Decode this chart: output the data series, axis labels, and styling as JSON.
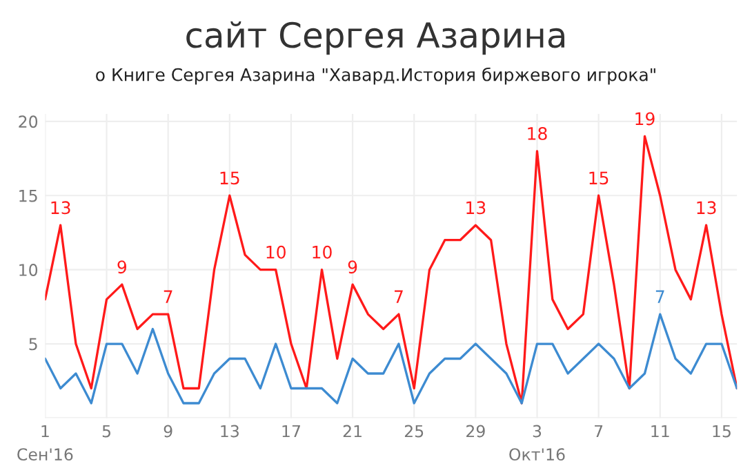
{
  "chart_data": {
    "type": "line",
    "title": "сайт Сергея Азарина",
    "subtitle": "о Книге Сергея Азарина \"Хавард.История биржевого игрока\"",
    "x": [
      "2016-09-01",
      "2016-09-02",
      "2016-09-03",
      "2016-09-04",
      "2016-09-05",
      "2016-09-06",
      "2016-09-07",
      "2016-09-08",
      "2016-09-09",
      "2016-09-10",
      "2016-09-11",
      "2016-09-12",
      "2016-09-13",
      "2016-09-14",
      "2016-09-15",
      "2016-09-16",
      "2016-09-17",
      "2016-09-18",
      "2016-09-19",
      "2016-09-20",
      "2016-09-21",
      "2016-09-22",
      "2016-09-23",
      "2016-09-24",
      "2016-09-25",
      "2016-09-26",
      "2016-09-27",
      "2016-09-28",
      "2016-09-29",
      "2016-09-30",
      "2016-10-01",
      "2016-10-02",
      "2016-10-03",
      "2016-10-04",
      "2016-10-05",
      "2016-10-06",
      "2016-10-07",
      "2016-10-08",
      "2016-10-09",
      "2016-10-10",
      "2016-10-11",
      "2016-10-12",
      "2016-10-13",
      "2016-10-14",
      "2016-10-15",
      "2016-10-16"
    ],
    "series": [
      {
        "color": "#ff1a1a",
        "values": [
          8,
          13,
          5,
          2,
          8,
          9,
          6,
          7,
          7,
          2,
          2,
          10,
          15,
          11,
          10,
          10,
          5,
          2,
          10,
          4,
          9,
          7,
          6,
          7,
          2,
          10,
          12,
          12,
          13,
          12,
          5,
          1,
          18,
          8,
          6,
          7,
          15,
          9,
          2,
          19,
          15,
          10,
          8,
          13,
          7,
          2
        ],
        "value_labels": [
          null,
          "13",
          null,
          null,
          null,
          "9",
          null,
          null,
          "7",
          null,
          null,
          null,
          "15",
          null,
          null,
          "10",
          null,
          null,
          "10",
          null,
          "9",
          null,
          null,
          "7",
          null,
          null,
          null,
          null,
          "13",
          null,
          null,
          null,
          "18",
          null,
          null,
          null,
          "15",
          null,
          null,
          "19",
          null,
          null,
          null,
          "13",
          null,
          null
        ]
      },
      {
        "color": "#3d8bd1",
        "values": [
          4,
          2,
          3,
          1,
          5,
          5,
          3,
          6,
          3,
          1,
          1,
          3,
          4,
          4,
          2,
          5,
          2,
          2,
          2,
          1,
          4,
          3,
          3,
          5,
          1,
          3,
          4,
          4,
          5,
          4,
          3,
          1,
          5,
          5,
          3,
          4,
          5,
          4,
          2,
          3,
          7,
          4,
          3,
          5,
          5,
          2
        ],
        "value_labels": [
          null,
          null,
          null,
          null,
          null,
          null,
          null,
          null,
          null,
          null,
          null,
          null,
          null,
          null,
          null,
          null,
          null,
          null,
          null,
          null,
          null,
          null,
          null,
          null,
          null,
          null,
          null,
          null,
          null,
          null,
          null,
          null,
          null,
          null,
          null,
          null,
          null,
          null,
          null,
          null,
          "7",
          null,
          null,
          null,
          null,
          null
        ]
      }
    ],
    "xlim": [
      "2016-09-01",
      "2016-10-16"
    ],
    "xticks": [
      {
        "value": "2016-09-01",
        "label": "1\nСен'16"
      },
      {
        "value": "2016-09-05",
        "label": "5"
      },
      {
        "value": "2016-09-09",
        "label": "9"
      },
      {
        "value": "2016-09-13",
        "label": "13"
      },
      {
        "value": "2016-09-17",
        "label": "17"
      },
      {
        "value": "2016-09-21",
        "label": "21"
      },
      {
        "value": "2016-09-25",
        "label": "25"
      },
      {
        "value": "2016-09-29",
        "label": "29"
      },
      {
        "value": "2016-10-03",
        "label": "3\nОкт'16"
      },
      {
        "value": "2016-10-07",
        "label": "7"
      },
      {
        "value": "2016-10-11",
        "label": "11"
      },
      {
        "value": "2016-10-15",
        "label": "15"
      }
    ],
    "ylim": [
      0,
      20.5
    ],
    "yticks": [
      {
        "value": 0,
        "label": null
      },
      5,
      10,
      15,
      20
    ],
    "grid": true,
    "marker": "none",
    "line_style": "solid"
  }
}
